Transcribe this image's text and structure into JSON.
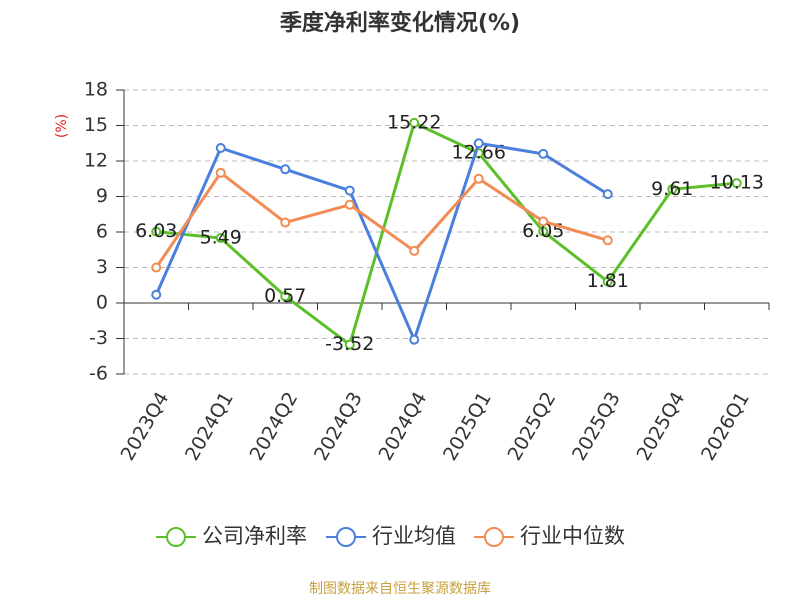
{
  "chart_data": {
    "type": "line",
    "title": "季度净利率变化情况(%)",
    "y_label": "(%)",
    "categories": [
      "2023Q4",
      "2024Q1",
      "2024Q2",
      "2024Q3",
      "2024Q4",
      "2025Q1",
      "2025Q2",
      "2025Q3",
      "2025Q4",
      "2026Q1"
    ],
    "series": [
      {
        "name": "公司净利率",
        "color": "#5cbf2a",
        "values": [
          6.03,
          5.49,
          0.57,
          -3.52,
          15.22,
          12.66,
          6.05,
          1.81,
          9.61,
          10.13
        ],
        "data_labels": true
      },
      {
        "name": "行业均值",
        "color": "#4a7fdc",
        "values": [
          0.7,
          13.1,
          11.3,
          9.5,
          -3.1,
          13.5,
          12.6,
          9.2,
          null,
          null
        ]
      },
      {
        "name": "行业中位数",
        "color": "#f28b54",
        "values": [
          3.0,
          11.0,
          6.8,
          8.3,
          4.4,
          10.5,
          6.9,
          5.3,
          null,
          null
        ]
      }
    ],
    "ylim": [
      -6,
      18
    ],
    "yticks": [
      -6,
      -3,
      0,
      3,
      6,
      9,
      12,
      15,
      18
    ],
    "grid": true,
    "legend": "bottom",
    "source": "制图数据来自恒生聚源数据库"
  }
}
